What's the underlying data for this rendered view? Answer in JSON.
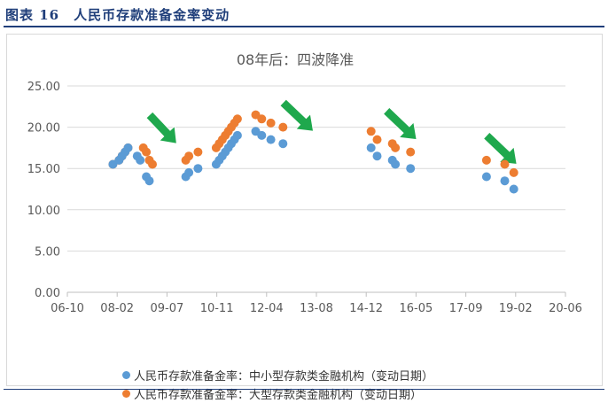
{
  "figure_title": "图表 16　人民币存款准备金率变动",
  "colors": {
    "title": "#1f3e7a",
    "series_small": "#5b9bd5",
    "series_large": "#ed7d31",
    "arrow": "#1fa84d",
    "grid": "#d9d9d9",
    "axis_text": "#595959"
  },
  "chart_data": {
    "type": "scatter",
    "title": "08年后：四波降准",
    "xlabel": "",
    "ylabel": "",
    "x_ticks": [
      "06-10",
      "08-02",
      "09-07",
      "10-11",
      "12-04",
      "13-08",
      "14-12",
      "16-05",
      "17-09",
      "19-02",
      "20-06"
    ],
    "y_ticks": [
      "0.00",
      "5.00",
      "10.00",
      "15.00",
      "20.00",
      "25.00"
    ],
    "ylim": [
      0,
      25
    ],
    "xlim": [
      "2006-10",
      "2020-06"
    ],
    "grid": "horizontal",
    "legend_position": "bottom",
    "annotations": [
      {
        "type": "arrow",
        "x_from": "2009-01",
        "y_from": 21.5,
        "x_to": "2009-10",
        "y_to": 18.0
      },
      {
        "type": "arrow",
        "x_from": "2012-09",
        "y_from": 23.0,
        "x_to": "2013-07",
        "y_to": 19.5
      },
      {
        "type": "arrow",
        "x_from": "2015-07",
        "y_from": 22.0,
        "x_to": "2016-05",
        "y_to": 18.5
      },
      {
        "type": "arrow",
        "x_from": "2018-04",
        "y_from": 19.0,
        "x_to": "2019-02",
        "y_to": 15.5
      }
    ],
    "series": [
      {
        "name": "人民币存款准备金率：中小型存款类金融机构（变动日期）",
        "points": [
          {
            "x": "2008-01",
            "y": 15.5
          },
          {
            "x": "2008-03",
            "y": 16.0
          },
          {
            "x": "2008-04",
            "y": 16.5
          },
          {
            "x": "2008-05",
            "y": 17.0
          },
          {
            "x": "2008-06",
            "y": 17.5
          },
          {
            "x": "2008-09",
            "y": 16.5
          },
          {
            "x": "2008-10",
            "y": 16.0
          },
          {
            "x": "2008-12",
            "y": 14.0
          },
          {
            "x": "2009-01",
            "y": 13.5
          },
          {
            "x": "2010-01",
            "y": 14.0
          },
          {
            "x": "2010-02",
            "y": 14.5
          },
          {
            "x": "2010-05",
            "y": 15.0
          },
          {
            "x": "2010-11",
            "y": 15.5
          },
          {
            "x": "2010-12",
            "y": 16.0
          },
          {
            "x": "2011-01",
            "y": 16.5
          },
          {
            "x": "2011-02",
            "y": 17.0
          },
          {
            "x": "2011-03",
            "y": 17.5
          },
          {
            "x": "2011-04",
            "y": 18.0
          },
          {
            "x": "2011-05",
            "y": 18.5
          },
          {
            "x": "2011-06",
            "y": 19.0
          },
          {
            "x": "2011-12",
            "y": 19.5
          },
          {
            "x": "2012-02",
            "y": 19.0
          },
          {
            "x": "2012-05",
            "y": 18.5
          },
          {
            "x": "2012-09",
            "y": 18.0
          },
          {
            "x": "2015-02",
            "y": 17.5
          },
          {
            "x": "2015-04",
            "y": 16.5
          },
          {
            "x": "2015-09",
            "y": 16.0
          },
          {
            "x": "2015-10",
            "y": 15.5
          },
          {
            "x": "2016-03",
            "y": 15.0
          },
          {
            "x": "2018-04",
            "y": 14.0
          },
          {
            "x": "2018-10",
            "y": 13.5
          },
          {
            "x": "2019-01",
            "y": 12.5
          }
        ]
      },
      {
        "name": "人民币存款准备金率：大型存款类金融机构（变动日期）",
        "points": [
          {
            "x": "2008-01",
            "y": 15.5
          },
          {
            "x": "2008-03",
            "y": 16.0
          },
          {
            "x": "2008-04",
            "y": 16.5
          },
          {
            "x": "2008-05",
            "y": 17.0
          },
          {
            "x": "2008-06",
            "y": 17.5
          },
          {
            "x": "2008-11",
            "y": 17.5
          },
          {
            "x": "2008-12",
            "y": 17.0
          },
          {
            "x": "2009-01",
            "y": 16.0
          },
          {
            "x": "2009-02",
            "y": 15.5
          },
          {
            "x": "2010-01",
            "y": 16.0
          },
          {
            "x": "2010-02",
            "y": 16.5
          },
          {
            "x": "2010-05",
            "y": 17.0
          },
          {
            "x": "2010-11",
            "y": 17.5
          },
          {
            "x": "2010-12",
            "y": 18.0
          },
          {
            "x": "2011-01",
            "y": 18.5
          },
          {
            "x": "2011-02",
            "y": 19.0
          },
          {
            "x": "2011-03",
            "y": 19.5
          },
          {
            "x": "2011-04",
            "y": 20.0
          },
          {
            "x": "2011-05",
            "y": 20.5
          },
          {
            "x": "2011-06",
            "y": 21.0
          },
          {
            "x": "2011-12",
            "y": 21.5
          },
          {
            "x": "2012-02",
            "y": 21.0
          },
          {
            "x": "2012-05",
            "y": 20.5
          },
          {
            "x": "2012-09",
            "y": 20.0
          },
          {
            "x": "2015-02",
            "y": 19.5
          },
          {
            "x": "2015-04",
            "y": 18.5
          },
          {
            "x": "2015-09",
            "y": 18.0
          },
          {
            "x": "2015-10",
            "y": 17.5
          },
          {
            "x": "2016-03",
            "y": 17.0
          },
          {
            "x": "2018-04",
            "y": 16.0
          },
          {
            "x": "2018-10",
            "y": 15.5
          },
          {
            "x": "2019-01",
            "y": 14.5
          }
        ]
      }
    ]
  }
}
